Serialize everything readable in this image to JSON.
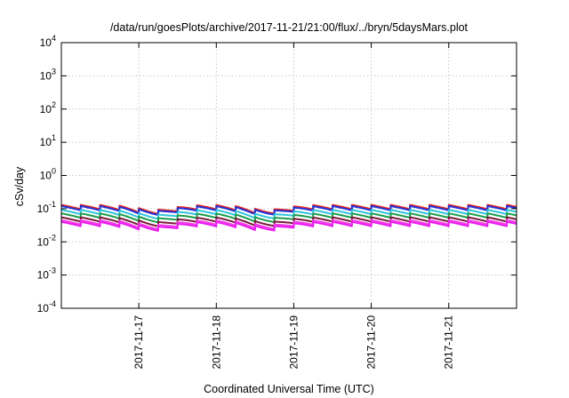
{
  "chart_data": {
    "type": "line",
    "title": "/data/run/goesPlots/archive/2017-11-21/21:00/flux/../bryn/5daysMars.plot",
    "xlabel": "Coordinated Universal Time (UTC)",
    "ylabel": "cSv/day",
    "yscale": "log",
    "ylim": [
      0.0001,
      10000
    ],
    "yticks": [
      {
        "base": "10",
        "exp": "4"
      },
      {
        "base": "10",
        "exp": "3"
      },
      {
        "base": "10",
        "exp": "2"
      },
      {
        "base": "10",
        "exp": "1"
      },
      {
        "base": "10",
        "exp": "0"
      },
      {
        "base": "10",
        "exp": "-1"
      },
      {
        "base": "10",
        "exp": "-2"
      },
      {
        "base": "10",
        "exp": "-3"
      },
      {
        "base": "10",
        "exp": "-4"
      }
    ],
    "xlim": [
      "2017-11-16 00:00",
      "2017-11-21 21:00"
    ],
    "xticks": [
      "2017-11-17",
      "2017-11-18",
      "2017-11-19",
      "2017-11-20",
      "2017-11-21"
    ],
    "grid": true,
    "series_shape": "sawtooth, about 4 cycles per day, each value dropping slowly through a cycle and then jumping back up",
    "series": [
      {
        "color": "#e8251f",
        "values_start": 0.13
      },
      {
        "color": "#2130d8",
        "values_start": 0.12
      },
      {
        "color": "#2fc4dc",
        "values_start": 0.092
      },
      {
        "color": "#1c9c4c",
        "values_start": 0.072
      },
      {
        "color": "#7a1a3a",
        "values_start": 0.055
      },
      {
        "color": "#f53ce6",
        "values_start": 0.045
      },
      {
        "color": "#e81cf0",
        "values_start": 0.04
      }
    ]
  }
}
